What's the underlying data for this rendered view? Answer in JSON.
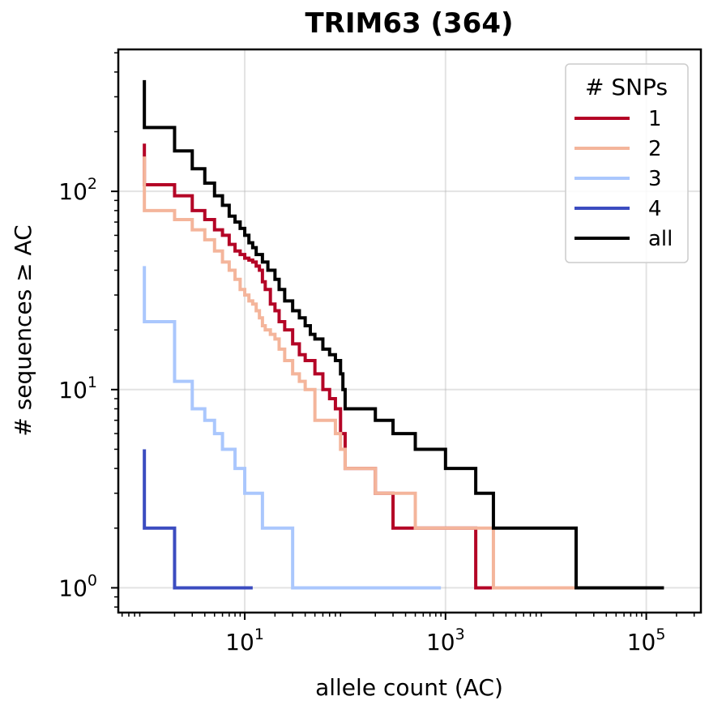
{
  "chart_data": {
    "type": "line",
    "step": "post",
    "title": "TRIM63 (364)",
    "xlabel": "allele count (AC)",
    "ylabel": "# sequences ≥ AC",
    "xscale": "log",
    "yscale": "log",
    "xlim": [
      0.55,
      350000
    ],
    "ylim": [
      0.75,
      520
    ],
    "x_major_ticks": [
      {
        "value": 10,
        "base": "10",
        "exp": "1"
      },
      {
        "value": 1000,
        "base": "10",
        "exp": "3"
      },
      {
        "value": 100000,
        "base": "10",
        "exp": "5"
      }
    ],
    "y_major_ticks": [
      {
        "value": 1,
        "base": "10",
        "exp": "0"
      },
      {
        "value": 10,
        "base": "10",
        "exp": "1"
      },
      {
        "value": 100,
        "base": "10",
        "exp": "2"
      }
    ],
    "grid": true,
    "legend": {
      "title": "# SNPs",
      "placement": "top-right"
    },
    "series": [
      {
        "name": "1",
        "color": "#b40426",
        "x": [
          1,
          1,
          2,
          3,
          4,
          5,
          6,
          7,
          8,
          9,
          10,
          11,
          12,
          13,
          14,
          15,
          16,
          18,
          20,
          22,
          25,
          30,
          35,
          40,
          50,
          60,
          70,
          80,
          90,
          100,
          200,
          300,
          2000,
          3000
        ],
        "y": [
          174,
          108,
          95,
          80,
          72,
          64,
          60,
          54,
          50,
          48,
          46,
          45,
          44,
          42,
          40,
          35,
          32,
          27,
          25,
          22,
          20,
          17,
          15,
          14,
          12,
          10,
          9,
          8,
          6,
          4,
          3,
          2,
          1,
          1
        ]
      },
      {
        "name": "2",
        "color": "#f4b59b",
        "x": [
          1,
          1,
          2,
          3,
          4,
          5,
          6,
          7,
          8,
          9,
          10,
          11,
          12,
          13,
          14,
          15,
          16,
          18,
          20,
          22,
          25,
          30,
          35,
          40,
          50,
          60,
          70,
          80,
          90,
          100,
          200,
          500,
          3000,
          20000
        ],
        "y": [
          150,
          80,
          72,
          64,
          57,
          50,
          44,
          40,
          36,
          32,
          30,
          28,
          27,
          25,
          23,
          21,
          20,
          19,
          18,
          16,
          14,
          12,
          11,
          10,
          7,
          7,
          7,
          6,
          5,
          4,
          3,
          2,
          1,
          1
        ]
      },
      {
        "name": "3",
        "color": "#aac7fd",
        "x": [
          1,
          1,
          2,
          3,
          4,
          5,
          6,
          8,
          10,
          15,
          30,
          900
        ],
        "y": [
          42,
          22,
          11,
          8,
          7,
          6,
          5,
          4,
          3,
          2,
          1,
          1
        ]
      },
      {
        "name": "4",
        "color": "#3b4cc0",
        "x": [
          1,
          1,
          2,
          12
        ],
        "y": [
          5,
          2,
          1,
          1
        ]
      },
      {
        "name": "all",
        "color": "#000000",
        "x": [
          1,
          1,
          2,
          3,
          4,
          5,
          6,
          7,
          8,
          9,
          10,
          11,
          12,
          13,
          15,
          17,
          20,
          22,
          25,
          30,
          35,
          40,
          45,
          50,
          60,
          70,
          80,
          90,
          95,
          100,
          200,
          300,
          500,
          1000,
          2000,
          3000,
          20000,
          150000
        ],
        "y": [
          364,
          210,
          160,
          130,
          110,
          95,
          85,
          75,
          70,
          65,
          60,
          55,
          52,
          48,
          44,
          40,
          36,
          32,
          28,
          25,
          23,
          21,
          19,
          18,
          16,
          15,
          14,
          12,
          10,
          8,
          7,
          6,
          5,
          4,
          3,
          2,
          1,
          1
        ]
      }
    ]
  }
}
